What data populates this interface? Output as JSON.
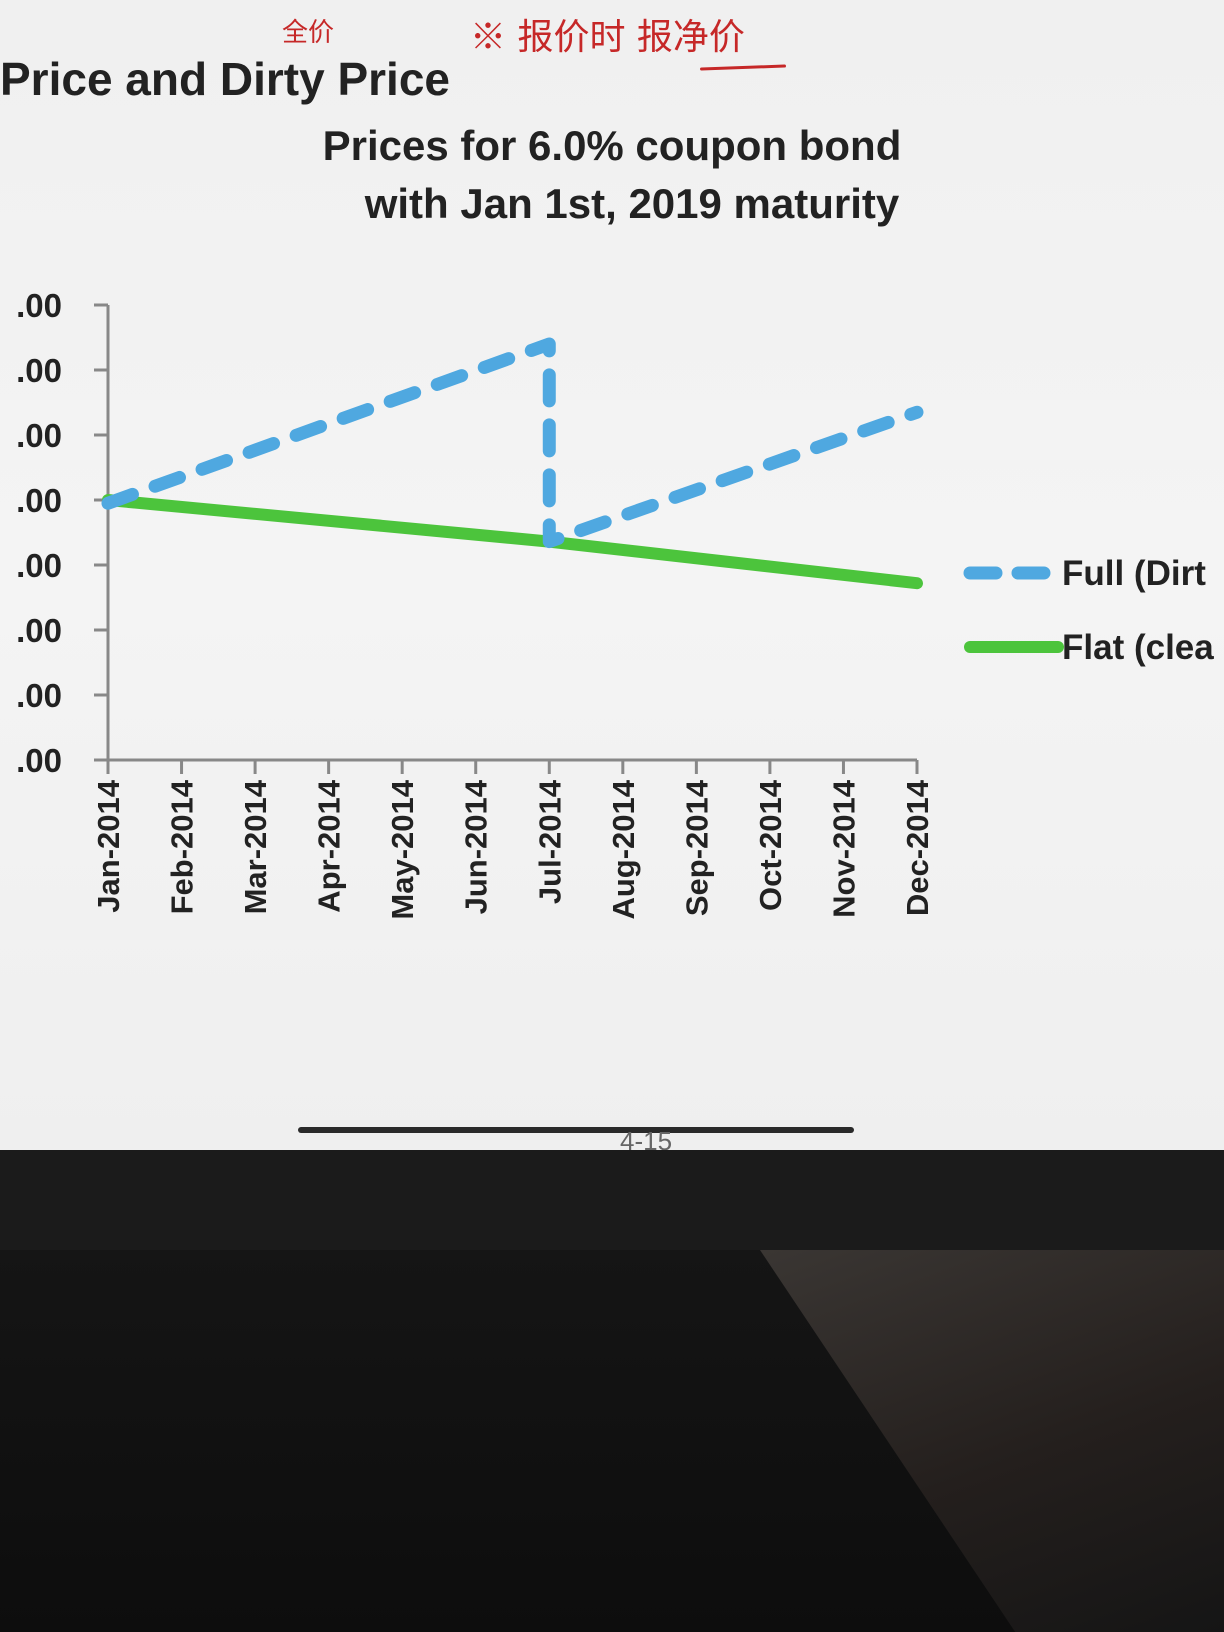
{
  "slide": {
    "title": "Price and Dirty Price",
    "handwritten_note_1": "全价",
    "handwritten_note_2": "※ 报价时 报净价",
    "page_number": "4-15"
  },
  "colors": {
    "full": "#4fa8e0",
    "flat": "#4cc43c",
    "axis": "#888888"
  },
  "chart_data": {
    "type": "line",
    "title": [
      "Prices for 6.0% coupon  bond",
      "with Jan 1st, 2019 maturity"
    ],
    "xlabel": "",
    "ylabel": "",
    "categories": [
      "Jan-2014",
      "Feb-2014",
      "Mar-2014",
      "Apr-2014",
      "May-2014",
      "Jun-2014",
      "Jul-2014",
      "Aug-2014",
      "Sep-2014",
      "Oct-2014",
      "Nov-2014",
      "Dec-2014"
    ],
    "yticks": [
      ".00",
      ".00",
      ".00",
      ".00",
      ".00",
      ".00",
      ".00",
      ".00"
    ],
    "ylim": [
      0,
      7
    ],
    "series": [
      {
        "name": "Full (Dirt",
        "style": "dashed",
        "points": [
          [
            0,
            3.95
          ],
          [
            6,
            6.4
          ],
          [
            6,
            3.36
          ],
          [
            11,
            5.35
          ]
        ]
      },
      {
        "name": "Flat (clea",
        "style": "solid",
        "points": [
          [
            0,
            4.0
          ],
          [
            6,
            3.36
          ],
          [
            11,
            2.72
          ]
        ]
      }
    ],
    "legend_position": "right",
    "grid": false
  }
}
